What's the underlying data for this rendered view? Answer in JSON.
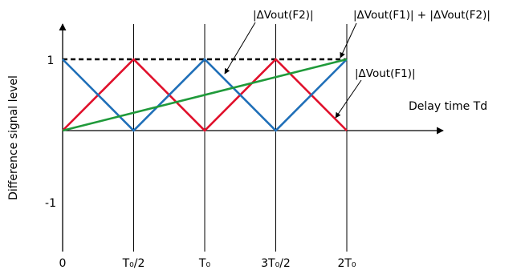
{
  "chart_data": {
    "type": "line",
    "xlabel": "Delay time Td",
    "ylabel": "Difference signal level",
    "xlim": [
      0,
      2
    ],
    "ylim": [
      -1.6,
      1.6
    ],
    "x_ticks": [
      {
        "value": 0,
        "label": "0"
      },
      {
        "value": 0.5,
        "label": "T₀/2"
      },
      {
        "value": 1,
        "label": "T₀"
      },
      {
        "value": 1.5,
        "label": "3T₀/2"
      },
      {
        "value": 2,
        "label": "2T₀"
      }
    ],
    "y_ticks": [
      {
        "value": 1,
        "label": "1"
      },
      {
        "value": -1,
        "label": "-1"
      }
    ],
    "grid": "vertical lines at x ticks",
    "series": [
      {
        "id": "red",
        "color": "#e0102b",
        "style": "solid",
        "x": [
          0,
          0.5,
          1,
          1.5,
          2
        ],
        "y": [
          0,
          1,
          0,
          1,
          0
        ]
      },
      {
        "id": "blue",
        "color": "#1f6fb8",
        "style": "solid",
        "x": [
          0,
          0.5,
          1,
          1.5,
          2
        ],
        "y": [
          1,
          0,
          1,
          0,
          1
        ]
      },
      {
        "id": "green",
        "color": "#1f9a3a",
        "style": "solid",
        "x": [
          0,
          2
        ],
        "y": [
          0,
          1
        ]
      },
      {
        "id": "black-dashed",
        "color": "#000000",
        "style": "dashed",
        "x": [
          0,
          2
        ],
        "y": [
          1,
          1
        ]
      }
    ],
    "annotations": [
      {
        "text": "|ΔVout(F2)|",
        "target": "blue"
      },
      {
        "text": "|ΔVout(F1)| + |ΔVout(F2)|",
        "target": "black-dashed"
      },
      {
        "text": "|ΔVout(F1)|",
        "target": "red"
      }
    ]
  }
}
